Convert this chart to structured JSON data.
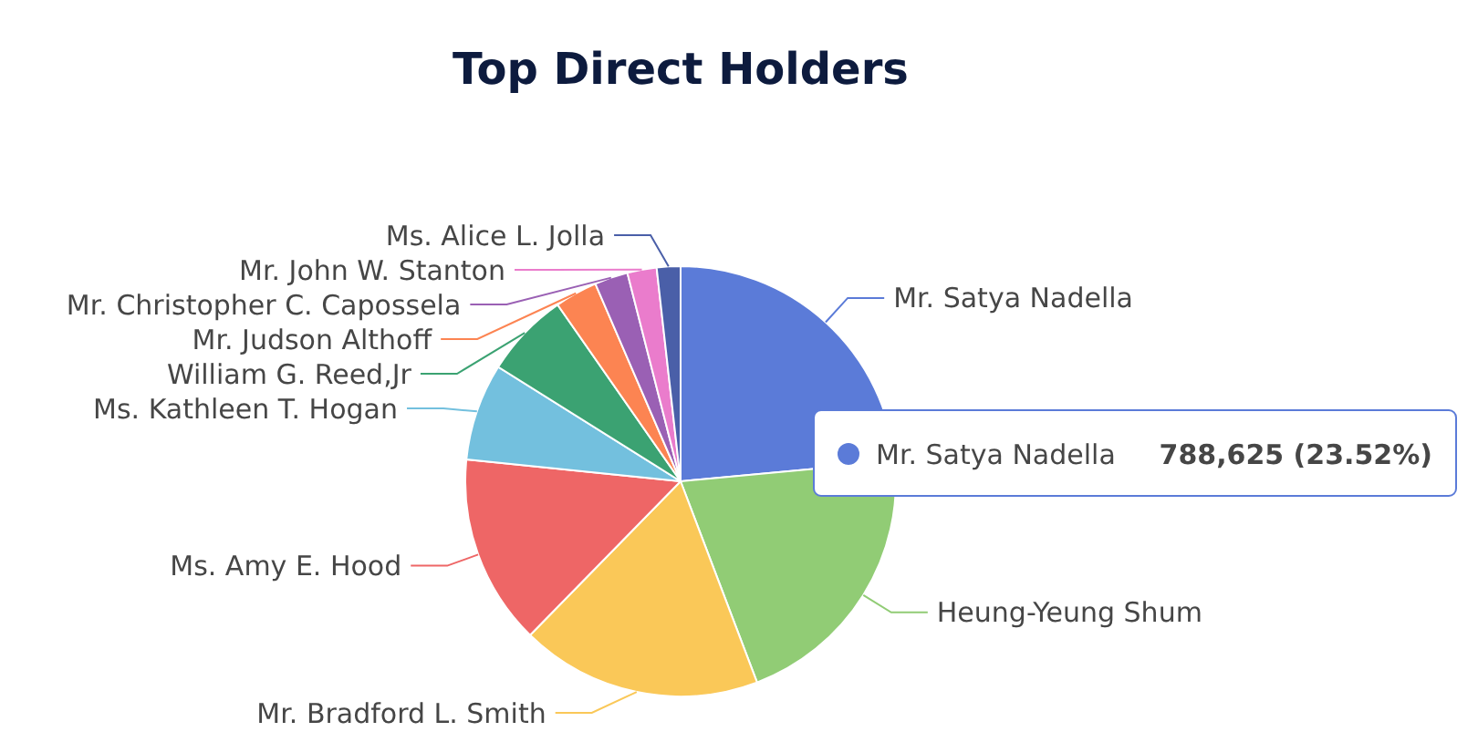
{
  "chart_data": {
    "type": "pie",
    "title": "Top Direct Holders",
    "categories": [
      "Mr. Satya Nadella",
      "Heung-Yeung Shum",
      "Mr. Bradford L. Smith",
      "Ms. Amy E. Hood",
      "Ms. Kathleen T. Hogan",
      "William G. Reed,Jr",
      "Mr. Judson Althoff",
      "Mr. Christopher C. Capossela",
      "Mr. John W. Stanton",
      "Ms. Alice L. Jolla"
    ],
    "values": [
      23.52,
      20.7,
      18.1,
      14.3,
      7.3,
      6.4,
      3.2,
      2.5,
      2.2,
      1.78
    ],
    "colors": [
      "#5b7bd8",
      "#91cc75",
      "#fac858",
      "#ee6666",
      "#73c0de",
      "#3ba272",
      "#fc8452",
      "#9a60b4",
      "#ea7ccc",
      "#4a5fa8"
    ],
    "annotations": [
      "788,625 (23.52%)"
    ]
  }
}
